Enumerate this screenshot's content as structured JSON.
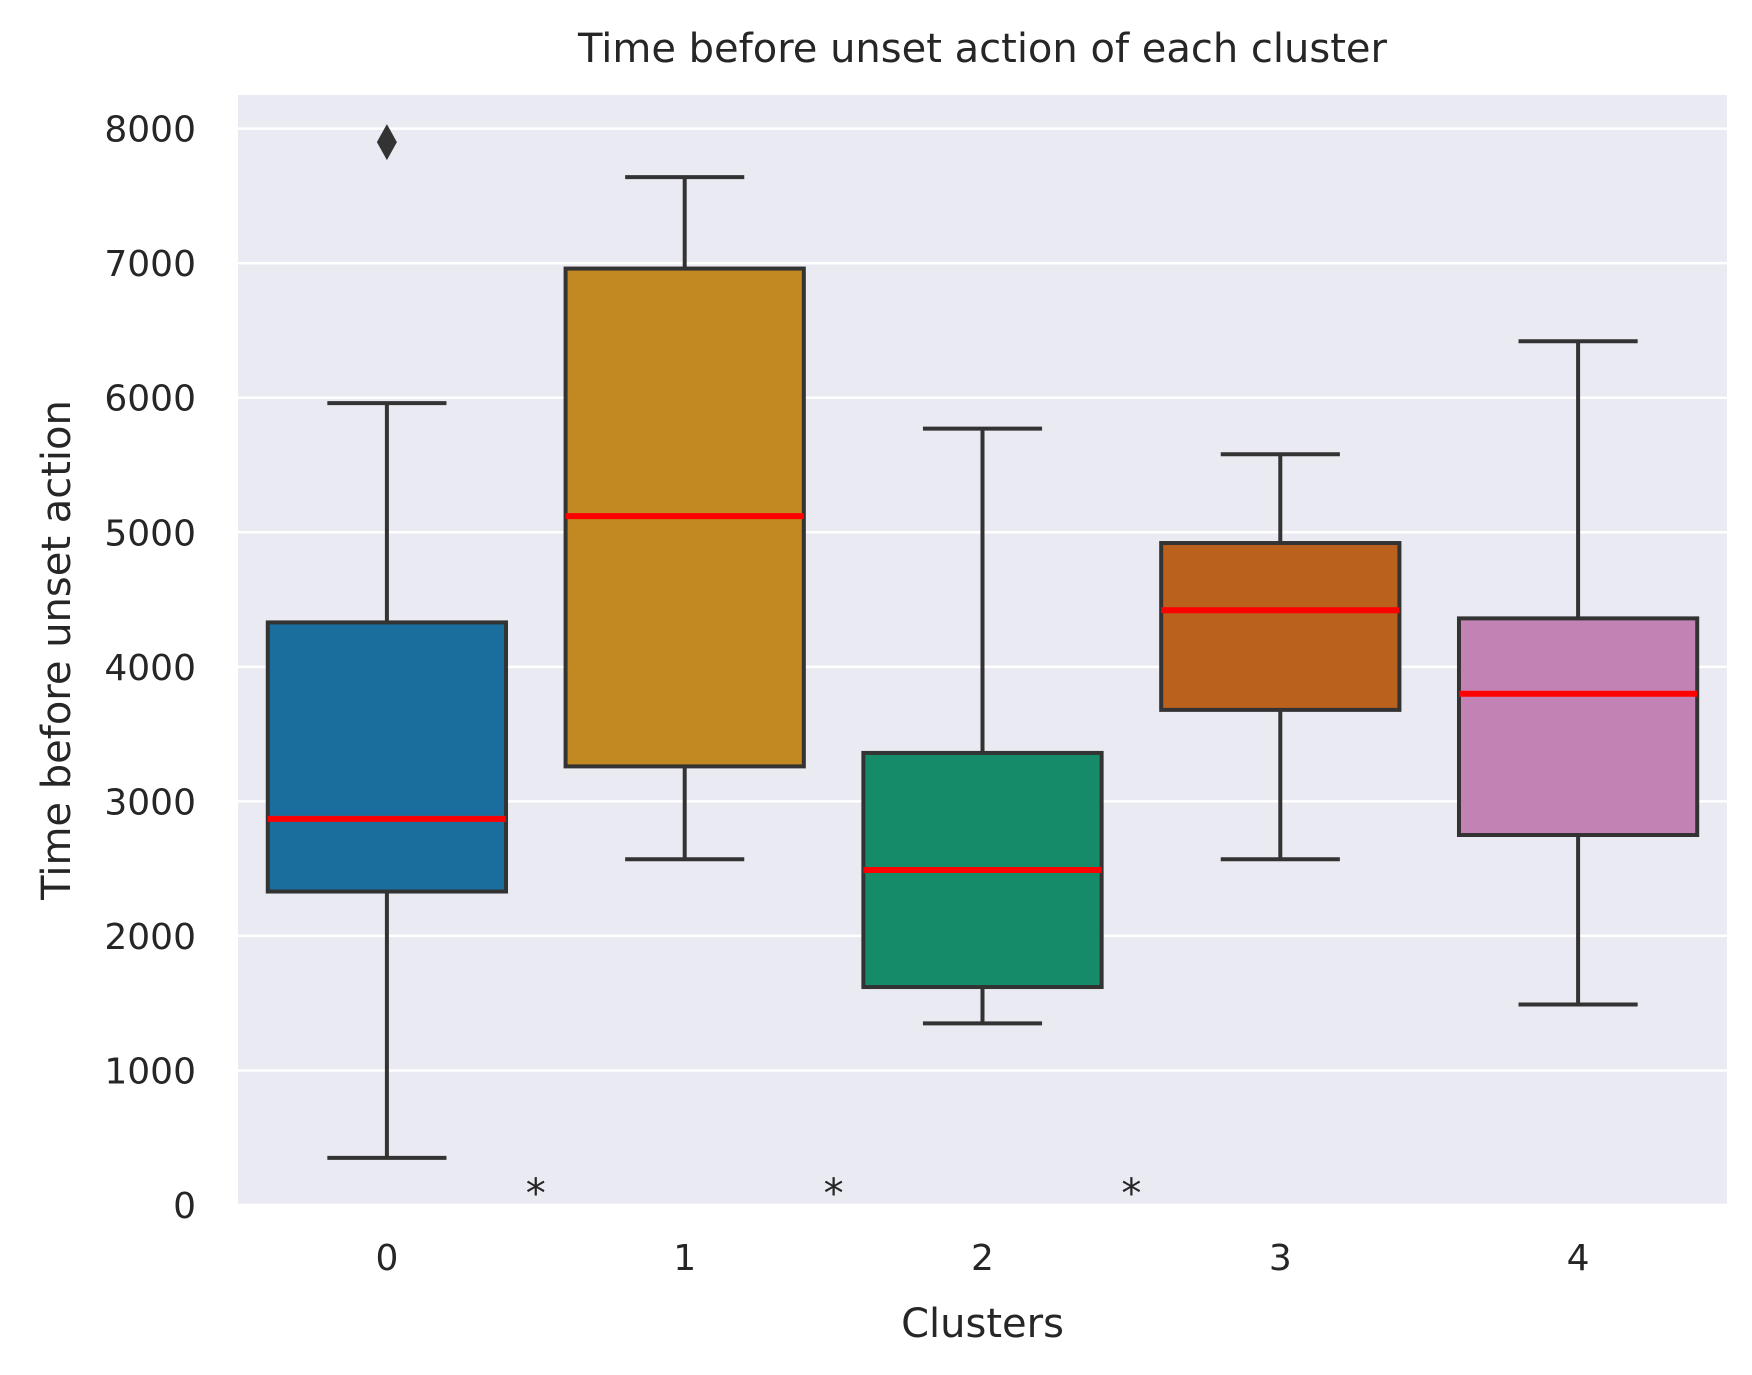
{
  "chart_data": {
    "type": "box",
    "title": "Time before unset action of each cluster",
    "xlabel": "Clusters",
    "ylabel": "Time before unset action",
    "categories": [
      "0",
      "1",
      "2",
      "3",
      "4"
    ],
    "ylim": [
      0,
      8250
    ],
    "yticks": [
      0,
      1000,
      2000,
      3000,
      4000,
      5000,
      6000,
      7000,
      8000
    ],
    "grid": true,
    "background_color": "#eaeaf2",
    "median_color": "#ff0000",
    "box_edge_color": "#333333",
    "boxes": [
      {
        "category": "0",
        "whisker_low": 350,
        "q1": 2330,
        "median": 2870,
        "q3": 4330,
        "whisker_high": 5960,
        "fliers": [
          7900
        ],
        "color": "#1a6e9e"
      },
      {
        "category": "1",
        "whisker_low": 2570,
        "q1": 3260,
        "median": 5120,
        "q3": 6960,
        "whisker_high": 7640,
        "fliers": [],
        "color": "#c28821"
      },
      {
        "category": "2",
        "whisker_low": 1350,
        "q1": 1620,
        "median": 2490,
        "q3": 3360,
        "whisker_high": 5770,
        "fliers": [],
        "color": "#168b69"
      },
      {
        "category": "3",
        "whisker_low": 2570,
        "q1": 3680,
        "median": 4420,
        "q3": 4920,
        "whisker_high": 5580,
        "fliers": [],
        "color": "#bb611e"
      },
      {
        "category": "4",
        "whisker_low": 1490,
        "q1": 2750,
        "median": 3800,
        "q3": 4360,
        "whisker_high": 6420,
        "fliers": [],
        "color": "#c382b4"
      }
    ],
    "annotations": [
      {
        "text": "*",
        "x": 0.5,
        "y": 150
      },
      {
        "text": "*",
        "x": 1.5,
        "y": 150
      },
      {
        "text": "*",
        "x": 2.5,
        "y": 150
      }
    ]
  }
}
